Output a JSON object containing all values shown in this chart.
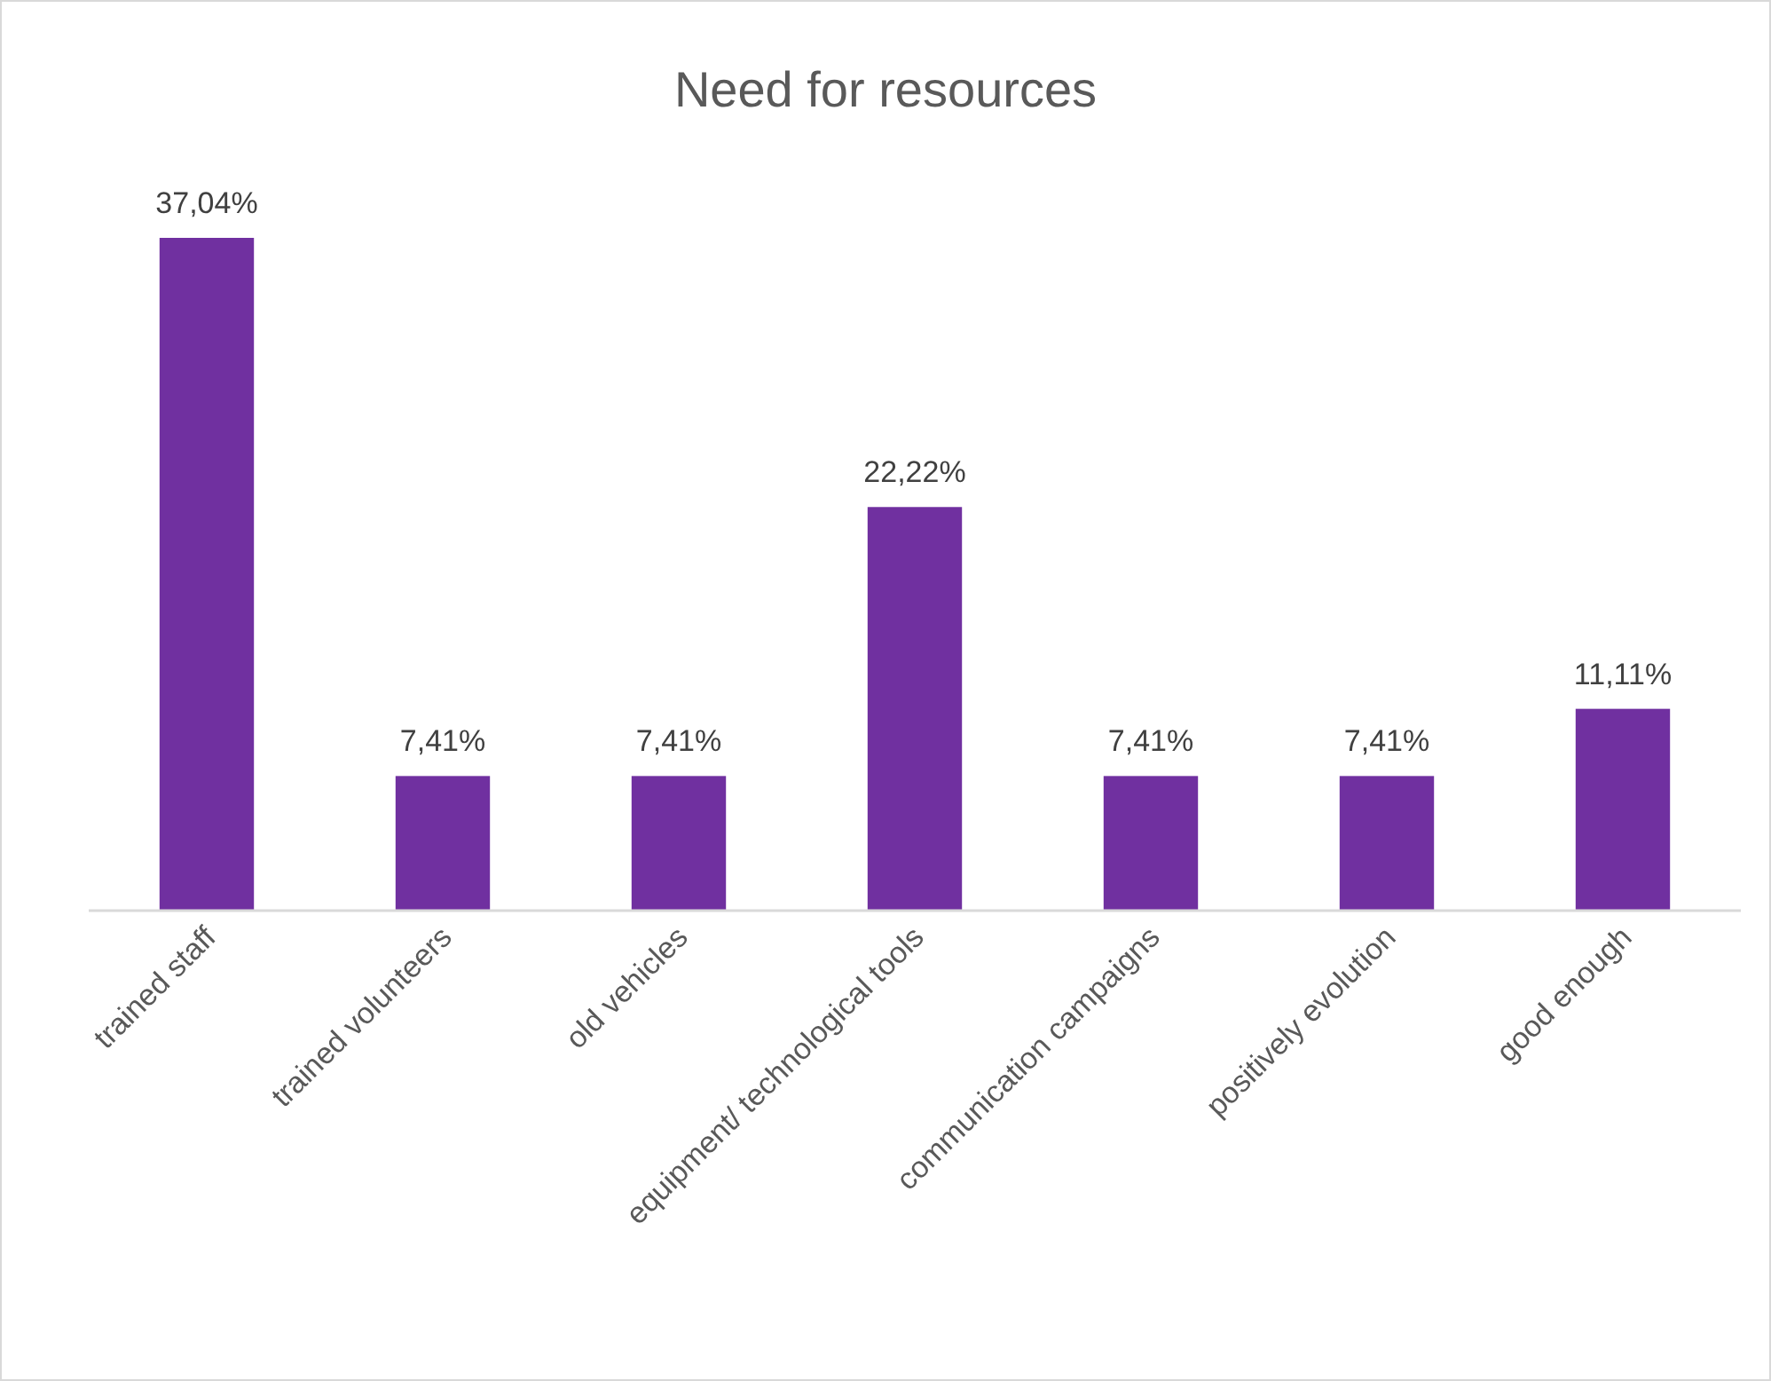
{
  "chart_data": {
    "type": "bar",
    "title": "Need for resources",
    "categories": [
      "trained staff",
      "trained volunteers",
      "old vehicles",
      "equipment/ technological tools",
      "communication campaigns",
      "positively evolution",
      "good enough"
    ],
    "values": [
      37.04,
      7.41,
      7.41,
      22.22,
      7.41,
      7.41,
      11.11
    ],
    "value_labels": [
      "37,04%",
      "7,41%",
      "7,41%",
      "22,22%",
      "7,41%",
      "7,41%",
      "11,11%"
    ],
    "color": "#7030a0"
  }
}
